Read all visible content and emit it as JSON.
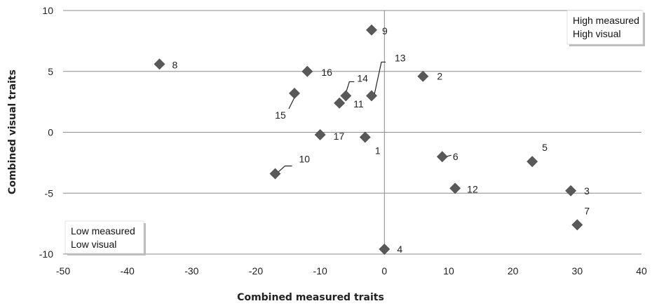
{
  "chart_data": {
    "type": "scatter",
    "xlabel": "Combined measured traits",
    "ylabel": "Combined visual traits",
    "xlim": [
      -50,
      40
    ],
    "ylim": [
      -10,
      10
    ],
    "x_ticks": [
      -50,
      -40,
      -30,
      -20,
      -10,
      0,
      10,
      20,
      30,
      40
    ],
    "y_ticks": [
      -10,
      -5,
      0,
      5,
      10
    ],
    "grid": "horizontal",
    "marker": "diamond",
    "marker_color": "#595959",
    "points": [
      {
        "label": "1",
        "x": -3,
        "y": -0.4
      },
      {
        "label": "2",
        "x": 6,
        "y": 4.6
      },
      {
        "label": "3",
        "x": 29,
        "y": -4.8
      },
      {
        "label": "4",
        "x": 0,
        "y": -9.6
      },
      {
        "label": "5",
        "x": 23,
        "y": -2.4
      },
      {
        "label": "6",
        "x": 9,
        "y": -2
      },
      {
        "label": "7",
        "x": 30,
        "y": -7.6
      },
      {
        "label": "8",
        "x": -35,
        "y": 5.6
      },
      {
        "label": "9",
        "x": -2,
        "y": 8.4
      },
      {
        "label": "10",
        "x": -17,
        "y": -3.4
      },
      {
        "label": "11",
        "x": -7,
        "y": 2.4
      },
      {
        "label": "12",
        "x": 11,
        "y": -4.6
      },
      {
        "label": "13",
        "x": -2,
        "y": 3
      },
      {
        "label": "14",
        "x": -6,
        "y": 3
      },
      {
        "label": "15",
        "x": -14,
        "y": 3.2
      },
      {
        "label": "16",
        "x": -12,
        "y": 5
      },
      {
        "label": "17",
        "x": -10,
        "y": -0.2
      }
    ],
    "annotations": [
      {
        "position": "top-right",
        "lines": [
          "High measured",
          "High visual"
        ]
      },
      {
        "position": "bottom-left",
        "lines": [
          "Low measured",
          "Low visual"
        ]
      }
    ]
  }
}
